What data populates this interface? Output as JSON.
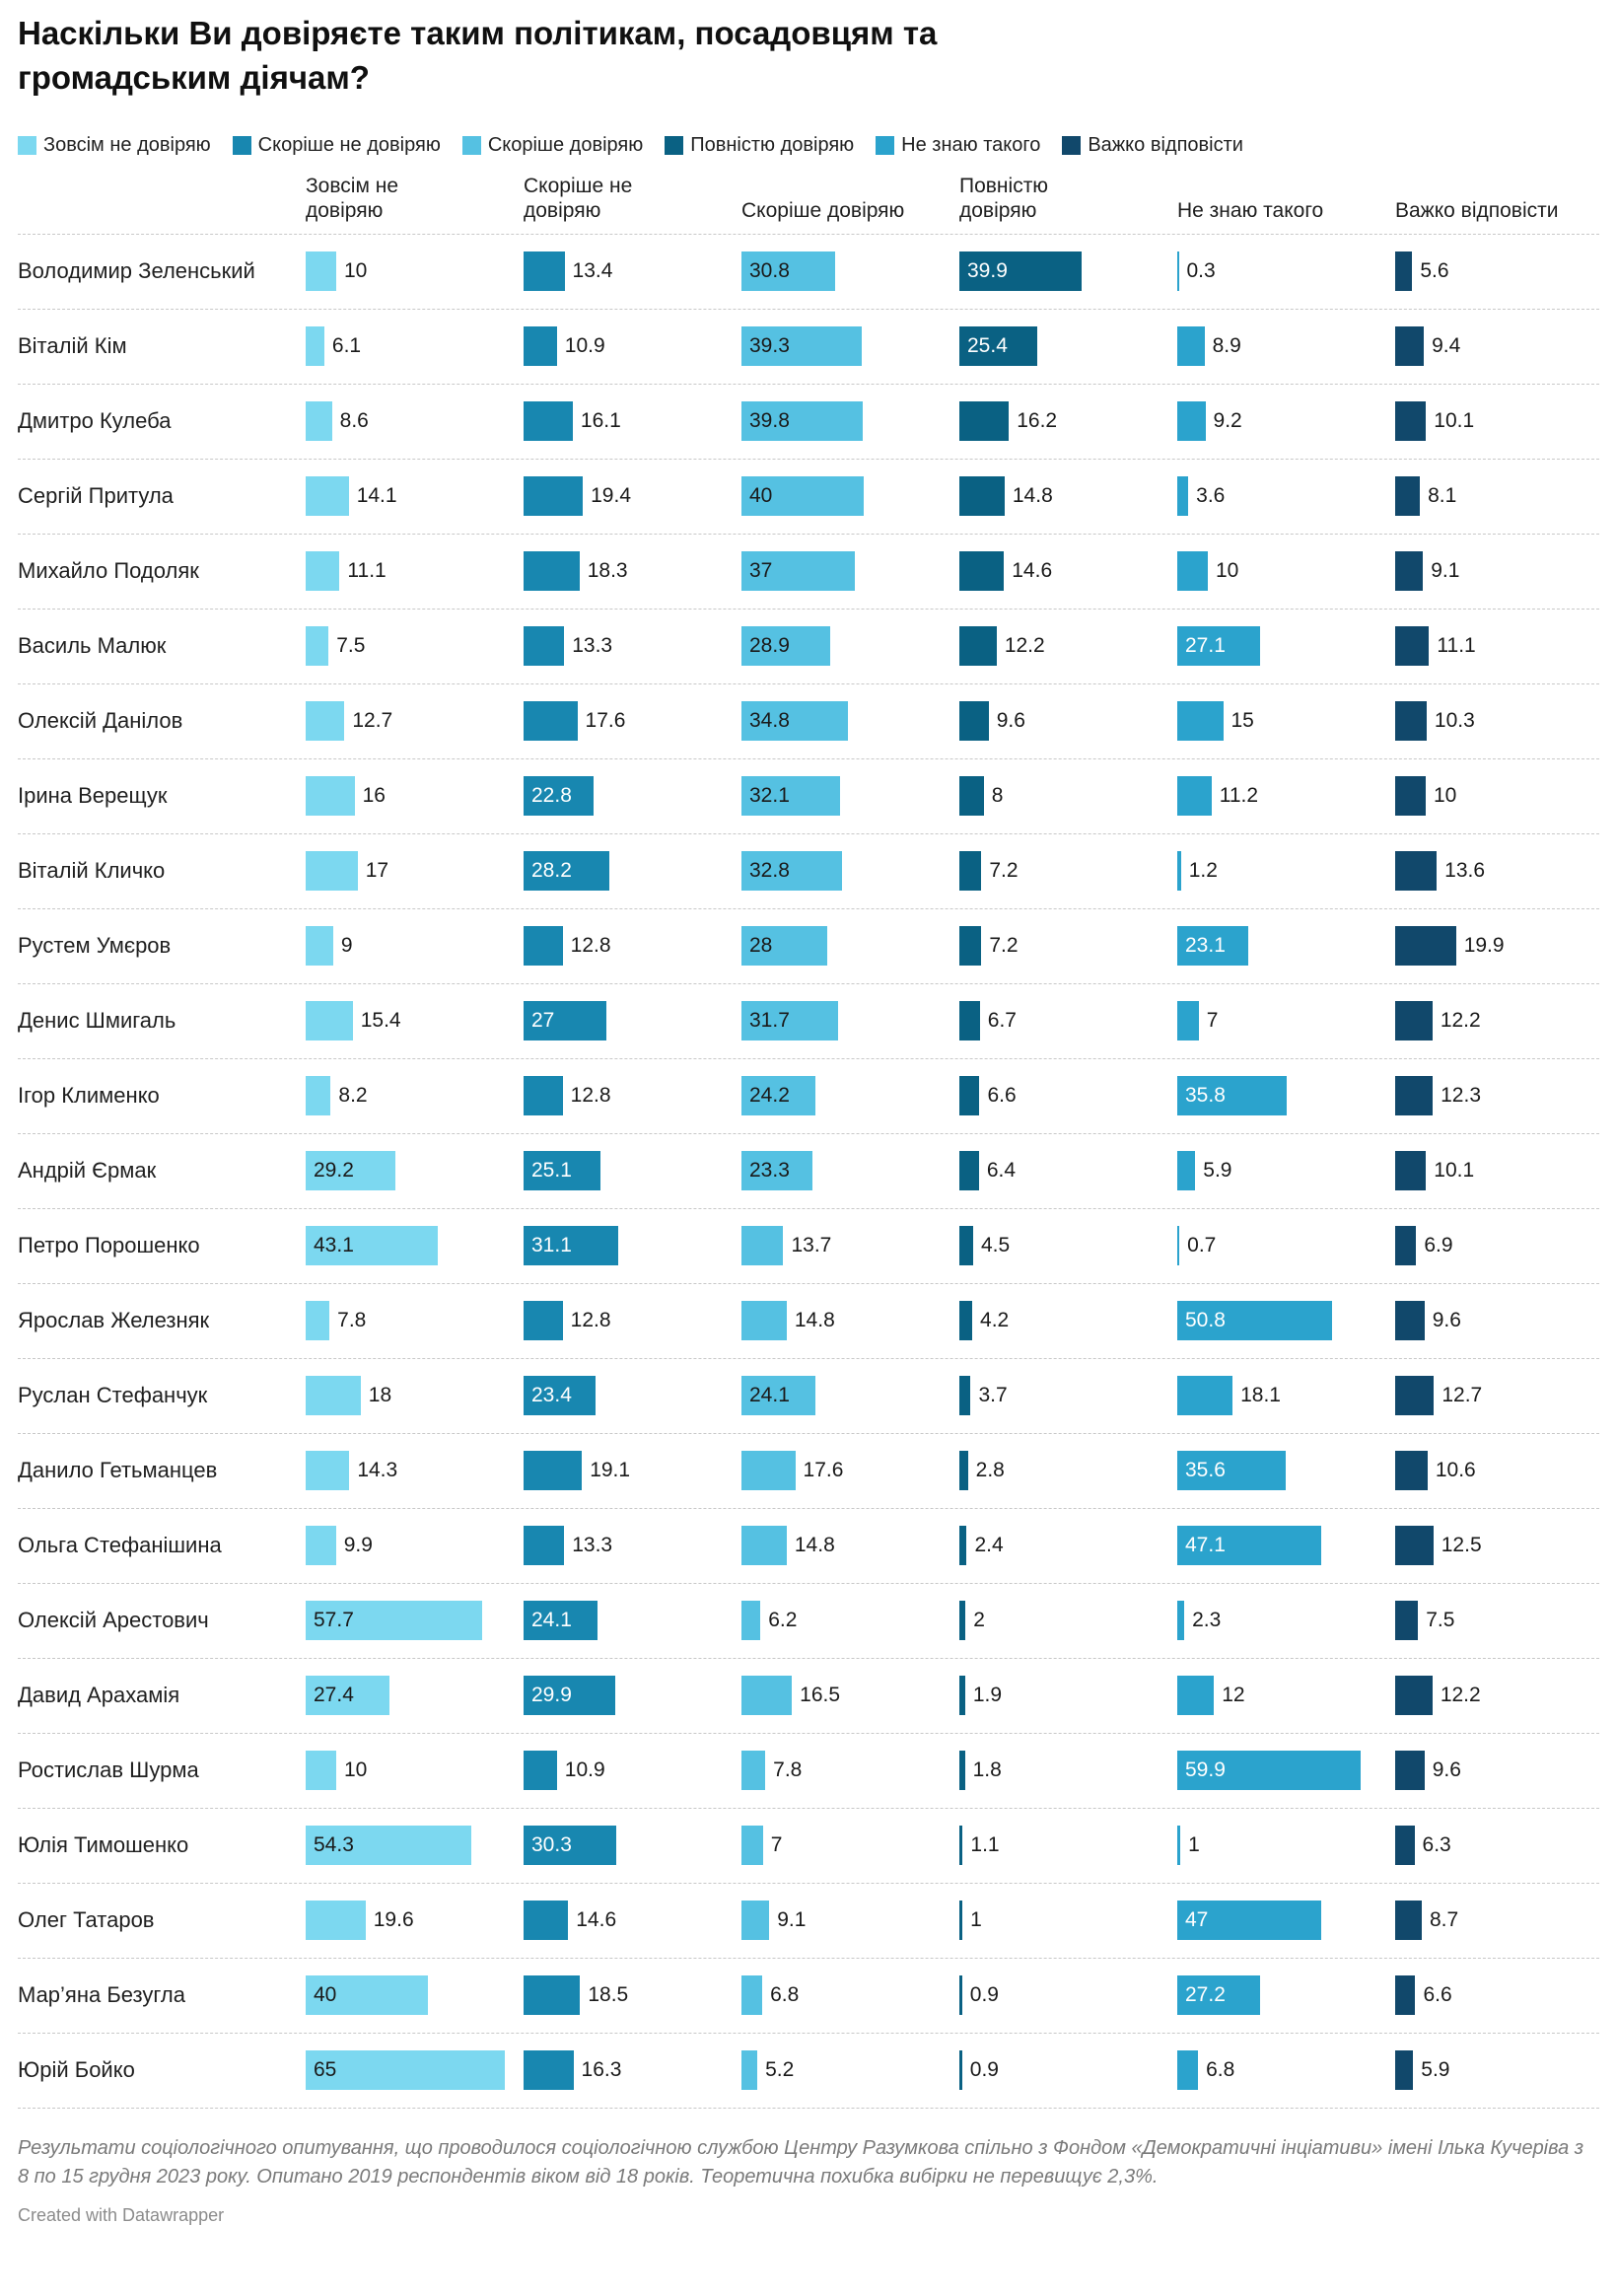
{
  "notes": "Результати соціологічного опитування, що проводилося соціологічною службою Центру Разумкова спільно з Фондом «Демократичні інціативи» імені Ілька Кучеріва з 8 по 15 грудня 2023 року. Опитано 2019 респондентів віком від 18 років. Теоретична похибка вибірки не перевищує 2,3%.",
  "attribution": "Created with Datawrapper",
  "column_headers": [
    "Зовсім не\nдовіряю",
    "Скоріше не\nдовіряю",
    "Скоріше довіряю",
    "Повністю\nдовіряю",
    "Не знаю такого",
    "Важко відповісти"
  ],
  "chart_data": {
    "type": "bar",
    "layout": "bar table: one row per person, one small bar column per answer option; shared x scale; dashed row separators; value labels inside bar when value >= 21, otherwise right of bar",
    "title": "Наскільки Ви довіряєте таким політикам, посадовцям та громадським діячам?",
    "value_unit": "%",
    "xlim": [
      0,
      66
    ],
    "legend_position": "top",
    "grid": "off",
    "categories": [
      "Володимир Зеленський",
      "Віталій Кім",
      "Дмитро Кулеба",
      "Сергій Притула",
      "Михайло Подоляк",
      "Василь Малюк",
      "Олексій Данілов",
      "Ірина Верещук",
      "Віталій Кличко",
      "Рустем Умєров",
      "Денис Шмигаль",
      "Ігор Клименко",
      "Андрій Єрмак",
      "Петро Порошенко",
      "Ярослав Железняк",
      "Руслан Стефанчук",
      "Данило Гетьманцев",
      "Ольга Стефанішина",
      "Олексій Арестович",
      "Давид Арахамія",
      "Ростислав Шурма",
      "Юлія Тимошенко",
      "Олег Татаров",
      "Мар’яна Безугла",
      "Юрій Бойко"
    ],
    "series": [
      {
        "name": "Зовсім не довіряю",
        "color": "#7cd8f0",
        "label_color_inside": "#1a1a1a",
        "values": [
          10,
          6.1,
          8.6,
          14.1,
          11.1,
          7.5,
          12.7,
          16,
          17,
          9,
          15.4,
          8.2,
          29.2,
          43.1,
          7.8,
          18,
          14.3,
          9.9,
          57.7,
          27.4,
          10,
          54.3,
          19.6,
          40,
          65
        ]
      },
      {
        "name": "Скоріше не довіряю",
        "color": "#1887b0",
        "label_color_inside": "#ffffff",
        "values": [
          13.4,
          10.9,
          16.1,
          19.4,
          18.3,
          13.3,
          17.6,
          22.8,
          28.2,
          12.8,
          27,
          12.8,
          25.1,
          31.1,
          12.8,
          23.4,
          19.1,
          13.3,
          24.1,
          29.9,
          10.9,
          30.3,
          14.6,
          18.5,
          16.3
        ]
      },
      {
        "name": "Скоріше довіряю",
        "color": "#55c1e2",
        "label_color_inside": "#1a1a1a",
        "values": [
          30.8,
          39.3,
          39.8,
          40,
          37,
          28.9,
          34.8,
          32.1,
          32.8,
          28,
          31.7,
          24.2,
          23.3,
          13.7,
          14.8,
          24.1,
          17.6,
          14.8,
          6.2,
          16.5,
          7.8,
          7,
          9.1,
          6.8,
          5.2
        ]
      },
      {
        "name": "Повністю довіряю",
        "color": "#0a6183",
        "label_color_inside": "#ffffff",
        "values": [
          39.9,
          25.4,
          16.2,
          14.8,
          14.6,
          12.2,
          9.6,
          8,
          7.2,
          7.2,
          6.7,
          6.6,
          6.4,
          4.5,
          4.2,
          3.7,
          2.8,
          2.4,
          2,
          1.9,
          1.8,
          1.1,
          1,
          0.9,
          0.9
        ]
      },
      {
        "name": "Не знаю такого",
        "color": "#2ba3cd",
        "label_color_inside": "#ffffff",
        "values": [
          0.3,
          8.9,
          9.2,
          3.6,
          10,
          27.1,
          15,
          11.2,
          1.2,
          23.1,
          7,
          35.8,
          5.9,
          0.7,
          50.8,
          18.1,
          35.6,
          47.1,
          2.3,
          12,
          59.9,
          1,
          47,
          27.2,
          6.8
        ]
      },
      {
        "name": "Важко відповісти",
        "color": "#11486b",
        "label_color_inside": "#ffffff",
        "values": [
          5.6,
          9.4,
          10.1,
          8.1,
          9.1,
          11.1,
          10.3,
          10,
          13.6,
          19.9,
          12.2,
          12.3,
          10.1,
          6.9,
          9.6,
          12.7,
          10.6,
          12.5,
          7.5,
          12.2,
          9.6,
          6.3,
          8.7,
          6.6,
          5.9
        ]
      }
    ]
  }
}
